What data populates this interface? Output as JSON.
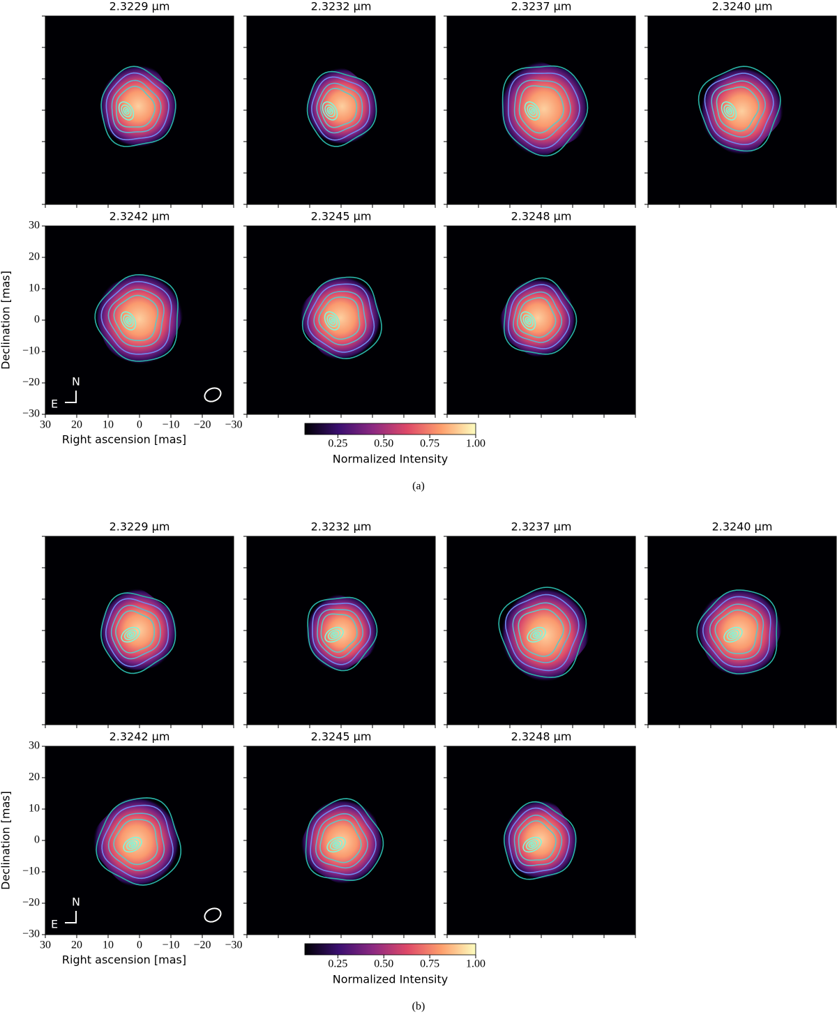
{
  "figures": [
    {
      "caption": "(a)",
      "panels": [
        {
          "title": "2.3229 μm"
        },
        {
          "title": "2.3232 μm"
        },
        {
          "title": "2.3237 μm"
        },
        {
          "title": "2.3240 μm"
        },
        {
          "title": "2.3242 μm"
        },
        {
          "title": "2.3245 μm"
        },
        {
          "title": "2.3248 μm"
        }
      ],
      "xlabel": "Right ascension [mas]",
      "ylabel": "Declination [mas]",
      "xlim": [
        30,
        -30
      ],
      "ylim": [
        -30,
        30
      ],
      "xticks": [
        30,
        20,
        10,
        0,
        {
          "value": -10,
          "label": "−10"
        },
        {
          "value": -20,
          "label": "−20"
        },
        {
          "value": -30,
          "label": "−30"
        }
      ],
      "yticks": [
        {
          "value": -30,
          "label": "−30"
        },
        {
          "value": -20,
          "label": "−20"
        },
        {
          "value": -10,
          "label": "−10"
        },
        0,
        10,
        20,
        30
      ],
      "compass": {
        "north": "N",
        "east": "E"
      },
      "colorbar": {
        "label": "Normalized Intensity",
        "lim": [
          0.07,
          1.0
        ],
        "ticks": [
          0.25,
          {
            "value": 0.5,
            "label": "0.50"
          },
          0.75,
          {
            "value": 1.0,
            "label": "1.00"
          }
        ]
      }
    },
    {
      "caption": "(b)",
      "panels": [
        {
          "title": "2.3229 μm"
        },
        {
          "title": "2.3232 μm"
        },
        {
          "title": "2.3237 μm"
        },
        {
          "title": "2.3240 μm"
        },
        {
          "title": "2.3242 μm"
        },
        {
          "title": "2.3245 μm"
        },
        {
          "title": "2.3248 μm"
        }
      ],
      "xlabel": "Right ascension [mas]",
      "ylabel": "Declination [mas]",
      "xlim": [
        30,
        -30
      ],
      "ylim": [
        -30,
        30
      ],
      "xticks": [
        30,
        20,
        10,
        0,
        {
          "value": -10,
          "label": "−10"
        },
        {
          "value": -20,
          "label": "−20"
        },
        {
          "value": -30,
          "label": "−30"
        }
      ],
      "yticks": [
        {
          "value": -30,
          "label": "−30"
        },
        {
          "value": -20,
          "label": "−20"
        },
        {
          "value": -10,
          "label": "−10"
        },
        0,
        10,
        20,
        30
      ],
      "compass": {
        "north": "N",
        "east": "E"
      },
      "colorbar": {
        "label": "Normalized Intensity",
        "lim": [
          0.07,
          1.0
        ],
        "ticks": [
          0.25,
          {
            "value": 0.5,
            "label": "0.50"
          },
          0.75,
          {
            "value": 1.0,
            "label": "1.00"
          }
        ]
      }
    }
  ]
}
